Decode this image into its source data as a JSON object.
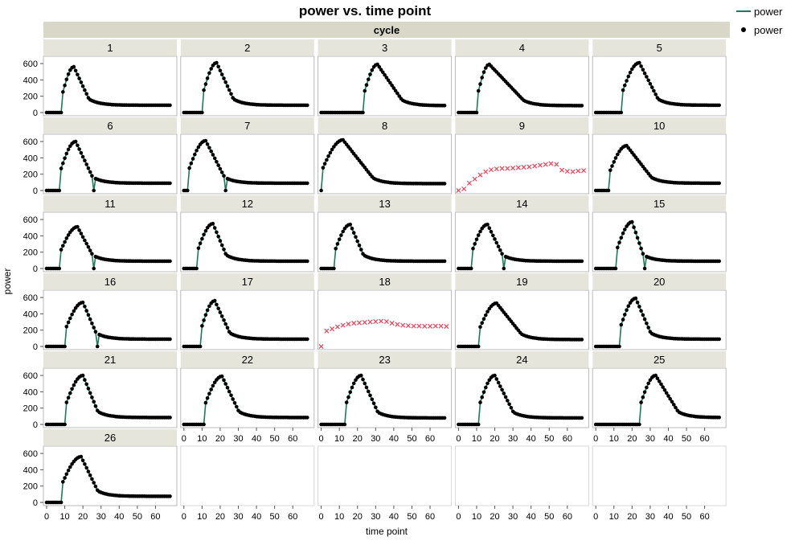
{
  "chart_data": {
    "type": "line",
    "title": "power vs. time point",
    "group_label": "cycle",
    "xlabel": "time point",
    "ylabel": "power",
    "xlim": [
      0,
      70
    ],
    "ylim": [
      0,
      650
    ],
    "x_ticks": [
      0,
      10,
      20,
      30,
      40,
      50,
      60
    ],
    "y_ticks": [
      0,
      200,
      400,
      600
    ],
    "grid": false,
    "legend": {
      "position": "top-right",
      "entries": [
        {
          "label": "power",
          "kind": "line",
          "color": "#1a7a5c"
        },
        {
          "label": "power",
          "kind": "point",
          "color": "#000000"
        }
      ]
    },
    "colors": {
      "line": "#1a7a5c",
      "point": "#000000",
      "flag": "#e8455a",
      "panel_header": "#e6e5dc",
      "group_header": "#d9d7c8"
    },
    "panels": [
      {
        "cycle": "1",
        "off_before": 9,
        "peak_at": 15,
        "peak": 560,
        "hold_to": 23,
        "tail": 90,
        "drop_at": null
      },
      {
        "cycle": "2",
        "off_before": 11,
        "peak_at": 18,
        "peak": 610,
        "hold_to": 27,
        "tail": 90,
        "drop_at": null
      },
      {
        "cycle": "3",
        "off_before": 24,
        "peak_at": 31,
        "peak": 590,
        "hold_to": 44,
        "tail": 85,
        "drop_at": null
      },
      {
        "cycle": "4",
        "off_before": 11,
        "peak_at": 17,
        "peak": 590,
        "hold_to": 35,
        "tail": 85,
        "drop_at": null
      },
      {
        "cycle": "5",
        "off_before": 15,
        "peak_at": 24,
        "peak": 610,
        "hold_to": 34,
        "tail": 90,
        "drop_at": null
      },
      {
        "cycle": "6",
        "off_before": 8,
        "peak_at": 16,
        "peak": 600,
        "hold_to": 25,
        "tail": 90,
        "drop_at": 25
      },
      {
        "cycle": "7",
        "off_before": 3,
        "peak_at": 12,
        "peak": 610,
        "hold_to": 22,
        "tail": 90,
        "drop_at": 22
      },
      {
        "cycle": "8",
        "off_before": 1,
        "peak_at": 12,
        "peak": 620,
        "hold_to": 28,
        "tail": 85,
        "drop_at": null
      },
      {
        "cycle": "9",
        "flag": true,
        "flag_values": [
          0,
          20,
          90,
          140,
          190,
          230,
          255,
          265,
          270,
          270,
          275,
          280,
          285,
          290,
          300,
          310,
          320,
          330,
          320,
          250,
          235,
          230,
          240,
          245
        ]
      },
      {
        "cycle": "10",
        "off_before": 8,
        "peak_at": 17,
        "peak": 550,
        "hold_to": 30,
        "tail": 90,
        "drop_at": null
      },
      {
        "cycle": "11",
        "off_before": 8,
        "peak_at": 17,
        "peak": 510,
        "hold_to": 25,
        "tail": 90,
        "drop_at": 25
      },
      {
        "cycle": "12",
        "off_before": 8,
        "peak_at": 16,
        "peak": 550,
        "hold_to": 23,
        "tail": 90,
        "drop_at": null
      },
      {
        "cycle": "13",
        "off_before": 8,
        "peak_at": 16,
        "peak": 540,
        "hold_to": 23,
        "tail": 90,
        "drop_at": null
      },
      {
        "cycle": "14",
        "off_before": 8,
        "peak_at": 16,
        "peak": 540,
        "hold_to": 24,
        "tail": 90,
        "drop_at": 24
      },
      {
        "cycle": "15",
        "off_before": 12,
        "peak_at": 20,
        "peak": 570,
        "hold_to": 26,
        "tail": 90,
        "drop_at": 26
      },
      {
        "cycle": "16",
        "off_before": 11,
        "peak_at": 20,
        "peak": 540,
        "hold_to": 27,
        "tail": 90,
        "drop_at": 27
      },
      {
        "cycle": "17",
        "off_before": 10,
        "peak_at": 17,
        "peak": 560,
        "hold_to": 25,
        "tail": 90,
        "drop_at": null
      },
      {
        "cycle": "18",
        "flag": true,
        "flag_values": [
          0,
          190,
          215,
          240,
          260,
          275,
          285,
          290,
          295,
          300,
          305,
          310,
          305,
          285,
          270,
          260,
          255,
          250,
          250,
          248,
          248,
          250,
          250,
          245
        ]
      },
      {
        "cycle": "19",
        "off_before": 12,
        "peak_at": 21,
        "peak": 530,
        "hold_to": 34,
        "tail": 85,
        "drop_at": null
      },
      {
        "cycle": "20",
        "off_before": 14,
        "peak_at": 22,
        "peak": 590,
        "hold_to": 30,
        "tail": 90,
        "drop_at": null
      },
      {
        "cycle": "21",
        "off_before": 11,
        "peak_at": 20,
        "peak": 600,
        "hold_to": 28,
        "tail": 85,
        "drop_at": null
      },
      {
        "cycle": "22",
        "off_before": 12,
        "peak_at": 21,
        "peak": 590,
        "hold_to": 30,
        "tail": 85,
        "drop_at": null
      },
      {
        "cycle": "23",
        "off_before": 14,
        "peak_at": 22,
        "peak": 600,
        "hold_to": 31,
        "tail": 80,
        "drop_at": null
      },
      {
        "cycle": "24",
        "off_before": 12,
        "peak_at": 20,
        "peak": 600,
        "hold_to": 30,
        "tail": 80,
        "drop_at": null
      },
      {
        "cycle": "25",
        "off_before": 25,
        "peak_at": 33,
        "peak": 600,
        "hold_to": 45,
        "tail": 85,
        "drop_at": null
      },
      {
        "cycle": "26",
        "off_before": 9,
        "peak_at": 19,
        "peak": 560,
        "hold_to": 28,
        "tail": 75,
        "drop_at": null
      }
    ]
  }
}
